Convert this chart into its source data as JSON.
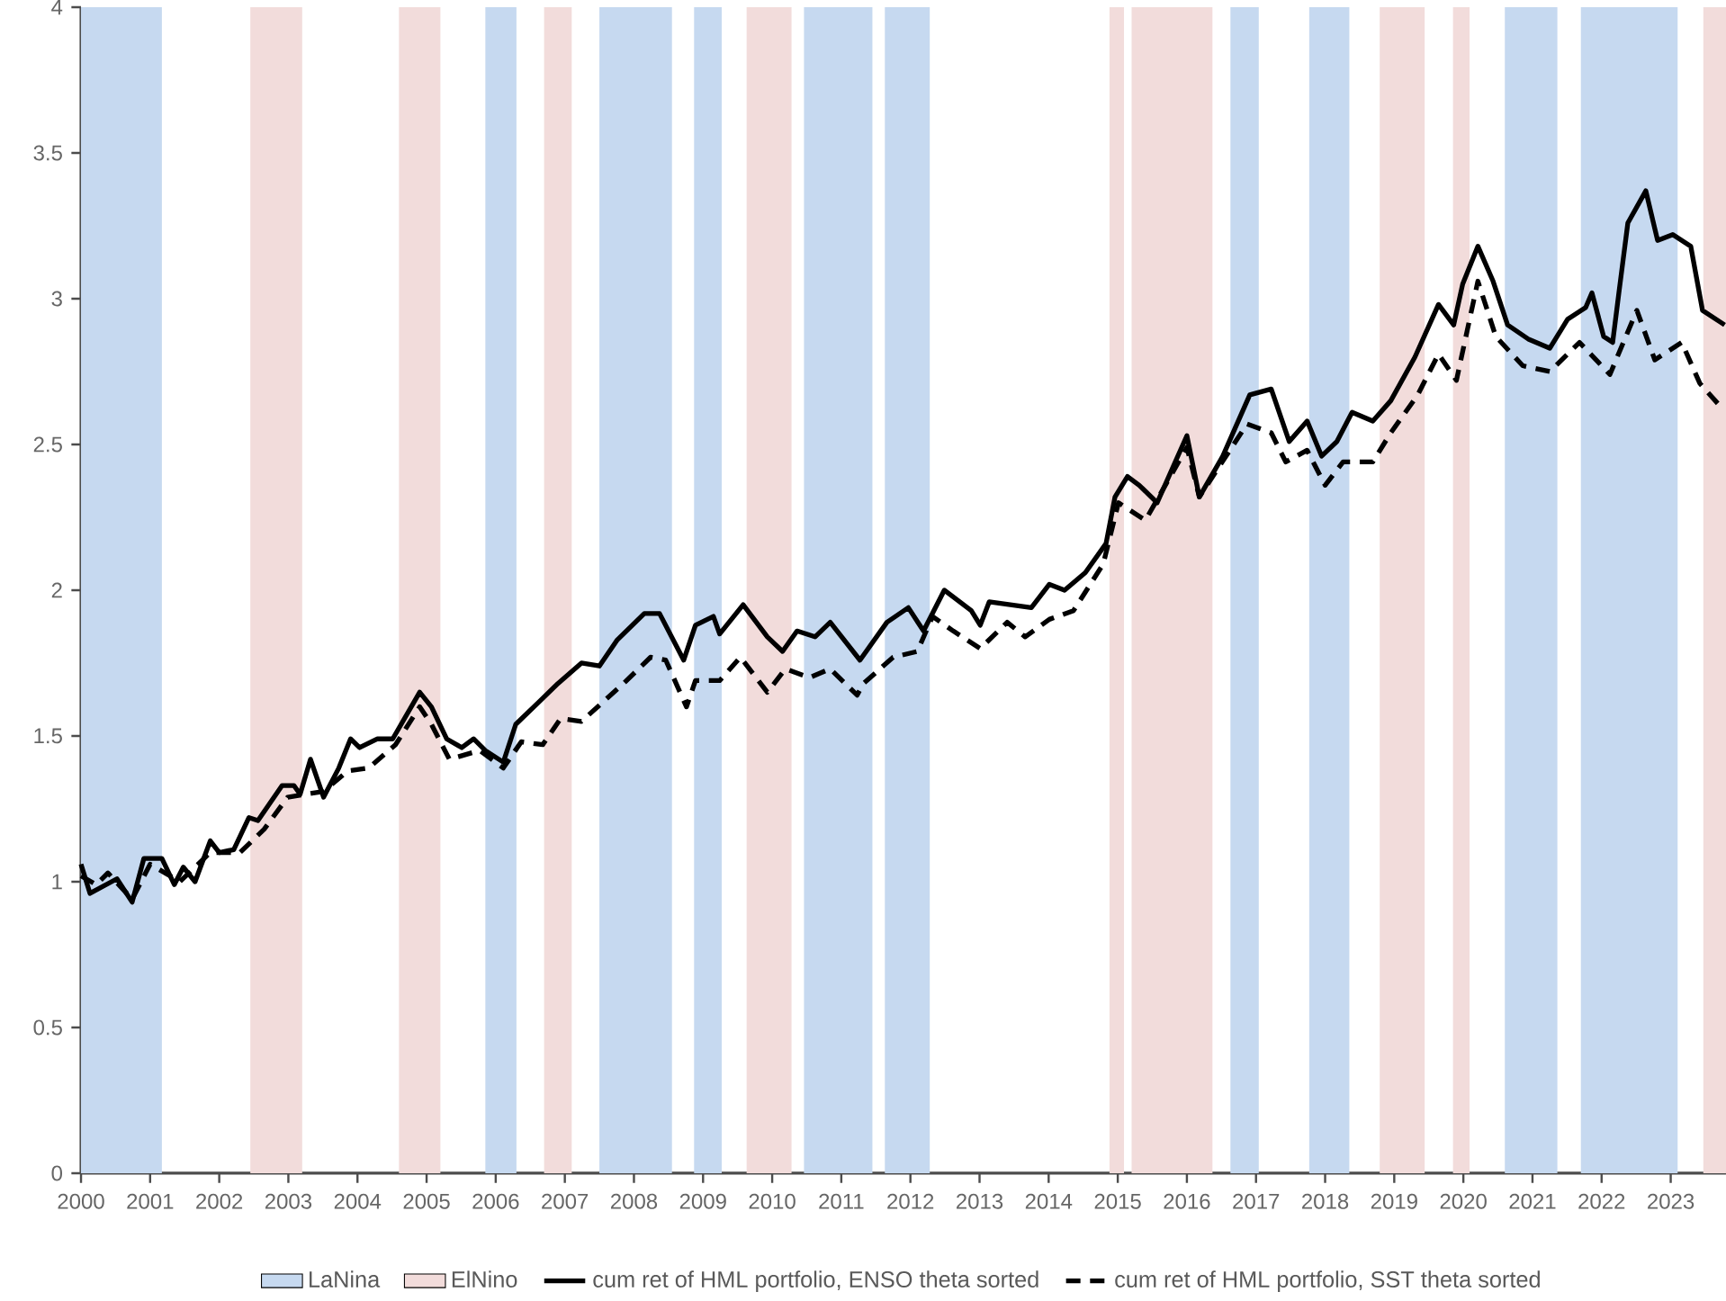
{
  "chart_data": {
    "type": "line",
    "xlim": [
      2000,
      2023.8
    ],
    "xticks": [
      2000,
      2001,
      2002,
      2003,
      2004,
      2005,
      2006,
      2007,
      2008,
      2009,
      2010,
      2011,
      2012,
      2013,
      2014,
      2015,
      2016,
      2017,
      2018,
      2019,
      2020,
      2021,
      2022,
      2023
    ],
    "ylim": [
      0,
      4
    ],
    "yticks": [
      0,
      0.5,
      1,
      1.5,
      2,
      2.5,
      3,
      3.5,
      4
    ],
    "grid": false,
    "legend": "bottom",
    "bands": [
      {
        "axis": "x",
        "from": 2000.0,
        "to": 2001.17,
        "label": "LaNina",
        "color": "#c6d9f0"
      },
      {
        "axis": "x",
        "from": 2002.45,
        "to": 2003.2,
        "label": "ElNino",
        "color": "#f2dcdb"
      },
      {
        "axis": "x",
        "from": 2004.6,
        "to": 2005.2,
        "color": "#f2dcdb"
      },
      {
        "axis": "x",
        "from": 2005.85,
        "to": 2006.3,
        "color": "#c6d9f0"
      },
      {
        "axis": "x",
        "from": 2006.7,
        "to": 2007.1,
        "color": "#f2dcdb"
      },
      {
        "axis": "x",
        "from": 2007.5,
        "to": 2008.55,
        "color": "#c6d9f0"
      },
      {
        "axis": "x",
        "from": 2008.87,
        "to": 2009.27,
        "color": "#c6d9f0"
      },
      {
        "axis": "x",
        "from": 2009.63,
        "to": 2010.28,
        "color": "#f2dcdb"
      },
      {
        "axis": "x",
        "from": 2010.46,
        "to": 2011.45,
        "color": "#c6d9f0"
      },
      {
        "axis": "x",
        "from": 2011.63,
        "to": 2012.28,
        "color": "#c6d9f0"
      },
      {
        "axis": "x",
        "from": 2014.88,
        "to": 2015.09,
        "color": "#f2dcdb"
      },
      {
        "axis": "x",
        "from": 2015.2,
        "to": 2016.37,
        "color": "#f2dcdb"
      },
      {
        "axis": "x",
        "from": 2016.63,
        "to": 2017.04,
        "color": "#c6d9f0"
      },
      {
        "axis": "x",
        "from": 2017.77,
        "to": 2018.35,
        "color": "#c6d9f0"
      },
      {
        "axis": "x",
        "from": 2018.79,
        "to": 2019.44,
        "color": "#f2dcdb"
      },
      {
        "axis": "x",
        "from": 2019.85,
        "to": 2020.09,
        "color": "#f2dcdb"
      },
      {
        "axis": "x",
        "from": 2020.6,
        "to": 2021.36,
        "color": "#c6d9f0"
      },
      {
        "axis": "x",
        "from": 2021.7,
        "to": 2023.1,
        "color": "#c6d9f0"
      },
      {
        "axis": "x",
        "from": 2023.47,
        "to": 2023.8,
        "color": "#f2dcdb"
      }
    ],
    "series": [
      {
        "name": "cum ret of HML portfolio, ENSO theta sorted",
        "color": "#000000",
        "line_style": "solid",
        "x": [
          2000.0,
          2000.13,
          2000.52,
          2000.74,
          2000.91,
          2001.17,
          2001.35,
          2001.48,
          2001.65,
          2001.87,
          2002.0,
          2002.21,
          2002.43,
          2002.56,
          2002.91,
          2003.08,
          2003.17,
          2003.32,
          2003.51,
          2003.73,
          2003.9,
          2004.03,
          2004.29,
          2004.51,
          2004.9,
          2005.07,
          2005.29,
          2005.51,
          2005.68,
          2005.85,
          2006.11,
          2006.29,
          2006.64,
          2006.9,
          2007.24,
          2007.5,
          2007.76,
          2008.15,
          2008.37,
          2008.72,
          2008.89,
          2009.15,
          2009.24,
          2009.58,
          2009.93,
          2010.15,
          2010.36,
          2010.62,
          2010.84,
          2011.27,
          2011.66,
          2011.97,
          2012.19,
          2012.49,
          2012.88,
          2013.01,
          2013.14,
          2013.75,
          2014.01,
          2014.23,
          2014.53,
          2014.83,
          2014.96,
          2015.14,
          2015.31,
          2015.57,
          2016.0,
          2016.18,
          2016.52,
          2016.91,
          2017.22,
          2017.48,
          2017.74,
          2017.95,
          2018.17,
          2018.39,
          2018.69,
          2018.95,
          2019.3,
          2019.64,
          2019.86,
          2019.99,
          2020.21,
          2020.43,
          2020.64,
          2020.95,
          2021.25,
          2021.51,
          2021.77,
          2021.86,
          2022.03,
          2022.16,
          2022.25,
          2022.38,
          2022.64,
          2022.81,
          2023.03,
          2023.29,
          2023.46,
          2023.78
        ],
        "values": [
          1.06,
          0.96,
          1.01,
          0.93,
          1.08,
          1.08,
          0.99,
          1.05,
          1.0,
          1.14,
          1.1,
          1.11,
          1.22,
          1.21,
          1.33,
          1.33,
          1.3,
          1.42,
          1.29,
          1.39,
          1.49,
          1.46,
          1.49,
          1.49,
          1.65,
          1.6,
          1.49,
          1.46,
          1.49,
          1.45,
          1.41,
          1.54,
          1.62,
          1.68,
          1.75,
          1.74,
          1.83,
          1.92,
          1.92,
          1.76,
          1.88,
          1.91,
          1.85,
          1.95,
          1.84,
          1.79,
          1.86,
          1.84,
          1.89,
          1.76,
          1.89,
          1.94,
          1.86,
          2.0,
          1.93,
          1.88,
          1.96,
          1.94,
          2.02,
          2.0,
          2.06,
          2.16,
          2.32,
          2.39,
          2.36,
          2.3,
          2.53,
          2.32,
          2.46,
          2.67,
          2.69,
          2.51,
          2.58,
          2.46,
          2.51,
          2.61,
          2.58,
          2.65,
          2.8,
          2.98,
          2.91,
          3.05,
          3.18,
          3.06,
          2.91,
          2.86,
          2.83,
          2.93,
          2.97,
          3.02,
          2.87,
          2.85,
          3.02,
          3.26,
          3.37,
          3.2,
          3.22,
          3.18,
          2.96,
          2.91
        ]
      },
      {
        "name": "cum ret of HML portfolio, SST theta sorted",
        "color": "#000000",
        "line_style": "dashed",
        "x": [
          2000.0,
          2000.22,
          2000.39,
          2000.74,
          2001.0,
          2001.43,
          2001.87,
          2002.3,
          2002.65,
          2002.99,
          2003.51,
          2003.86,
          2004.16,
          2004.55,
          2004.9,
          2005.07,
          2005.33,
          2005.77,
          2006.11,
          2006.37,
          2006.68,
          2006.94,
          2007.24,
          2007.85,
          2008.24,
          2008.46,
          2008.76,
          2008.89,
          2009.24,
          2009.54,
          2009.93,
          2010.19,
          2010.54,
          2010.84,
          2011.23,
          2011.32,
          2011.75,
          2012.1,
          2012.32,
          2012.62,
          2013.01,
          2013.4,
          2013.66,
          2014.01,
          2014.36,
          2014.79,
          2015.01,
          2015.4,
          2016.0,
          2016.18,
          2016.87,
          2017.22,
          2017.43,
          2017.74,
          2018.0,
          2018.26,
          2018.69,
          2018.95,
          2019.34,
          2019.64,
          2019.9,
          2020.21,
          2020.47,
          2020.86,
          2021.25,
          2021.68,
          2022.12,
          2022.51,
          2022.77,
          2023.16,
          2023.42,
          2023.72
        ],
        "values": [
          1.02,
          0.99,
          1.03,
          0.94,
          1.06,
          1.0,
          1.1,
          1.1,
          1.18,
          1.29,
          1.31,
          1.38,
          1.39,
          1.47,
          1.6,
          1.54,
          1.42,
          1.45,
          1.39,
          1.48,
          1.47,
          1.56,
          1.55,
          1.68,
          1.77,
          1.76,
          1.6,
          1.69,
          1.69,
          1.77,
          1.65,
          1.73,
          1.7,
          1.73,
          1.64,
          1.68,
          1.77,
          1.79,
          1.91,
          1.86,
          1.8,
          1.89,
          1.84,
          1.9,
          1.93,
          2.09,
          2.3,
          2.24,
          2.49,
          2.32,
          2.57,
          2.54,
          2.44,
          2.48,
          2.36,
          2.44,
          2.44,
          2.54,
          2.67,
          2.81,
          2.72,
          3.06,
          2.87,
          2.77,
          2.75,
          2.85,
          2.74,
          2.96,
          2.79,
          2.85,
          2.71,
          2.63
        ]
      }
    ]
  }
}
